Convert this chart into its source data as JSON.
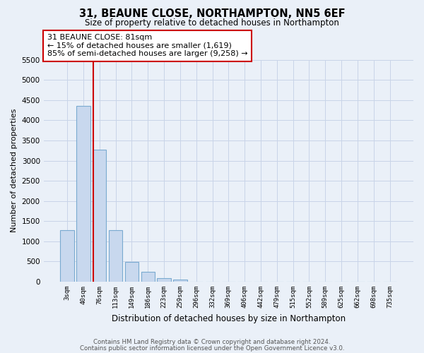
{
  "title": "31, BEAUNE CLOSE, NORTHAMPTON, NN5 6EF",
  "subtitle": "Size of property relative to detached houses in Northampton",
  "xlabel": "Distribution of detached houses by size in Northampton",
  "ylabel": "Number of detached properties",
  "bar_labels": [
    "3sqm",
    "40sqm",
    "76sqm",
    "113sqm",
    "149sqm",
    "186sqm",
    "223sqm",
    "259sqm",
    "296sqm",
    "332sqm",
    "369sqm",
    "406sqm",
    "442sqm",
    "479sqm",
    "515sqm",
    "552sqm",
    "589sqm",
    "625sqm",
    "662sqm",
    "698sqm",
    "735sqm"
  ],
  "bar_values": [
    1270,
    4350,
    3270,
    1285,
    490,
    240,
    90,
    50,
    0,
    0,
    0,
    0,
    0,
    0,
    0,
    0,
    0,
    0,
    0,
    0,
    0
  ],
  "bar_color": "#c8d8ee",
  "bar_edge_color": "#7aaad0",
  "property_line_color": "#cc0000",
  "property_line_x": 1.6,
  "annotation_title": "31 BEAUNE CLOSE: 81sqm",
  "annotation_line1": "← 15% of detached houses are smaller (1,619)",
  "annotation_line2": "85% of semi-detached houses are larger (9,258) →",
  "annotation_box_color": "#ffffff",
  "annotation_box_edge_color": "#cc0000",
  "ylim": [
    0,
    5500
  ],
  "yticks": [
    0,
    500,
    1000,
    1500,
    2000,
    2500,
    3000,
    3500,
    4000,
    4500,
    5000,
    5500
  ],
  "grid_color": "#c8d4e8",
  "footer_line1": "Contains HM Land Registry data © Crown copyright and database right 2024.",
  "footer_line2": "Contains public sector information licensed under the Open Government Licence v3.0.",
  "bg_color": "#eaf0f8"
}
